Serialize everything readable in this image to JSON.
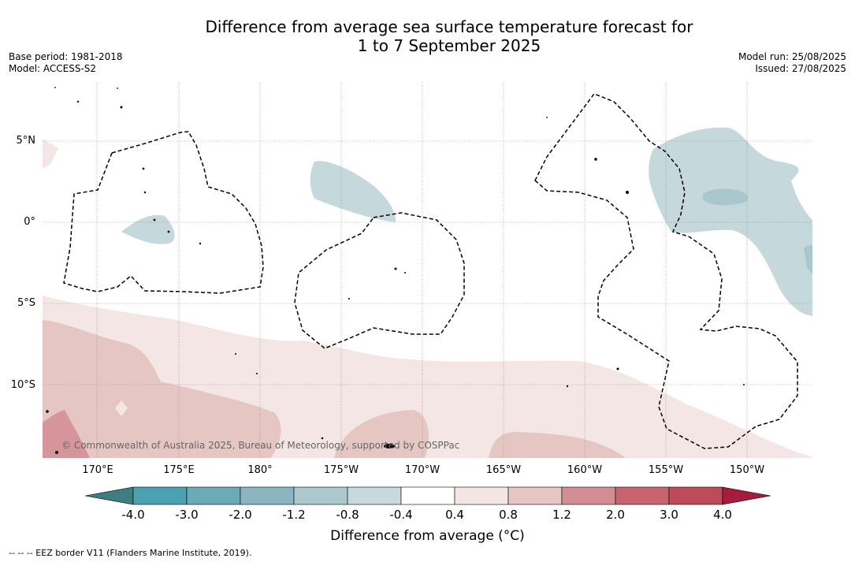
{
  "title": {
    "line1": "Difference from average sea surface temperature forecast for",
    "line2": "1 to 7 September 2025"
  },
  "meta": {
    "base_period": "Base period: 1981-2018",
    "model": "Model: ACCESS-S2",
    "model_run": "Model run: 25/08/2025",
    "issued": "Issued: 27/08/2025"
  },
  "map": {
    "lat_labels": [
      "5°N",
      "0°",
      "5°S",
      "10°S"
    ],
    "lon_labels": [
      "170°E",
      "175°E",
      "180°",
      "175°W",
      "170°W",
      "165°W",
      "160°W",
      "155°W",
      "150°W"
    ],
    "copyright": "© Commonwealth of Australia 2025, Bureau of Meteorology, supported by COSPPac",
    "colors": {
      "anom_plus_0_4_to_0_8": "#f3e6e5",
      "anom_plus_0_8_to_1_2": "#e6c6c2",
      "anom_plus_1_2_to_2_0": "#d5959a",
      "anom_minus_0_8_to_minus_0_4": "#c5d8dc",
      "anom_minus_1_2_to_minus_0_8": "#a9c8cd",
      "eez_border": "#000000",
      "gridlines": "#888888"
    }
  },
  "colorbar": {
    "ticks": [
      "-4.0",
      "-3.0",
      "-2.0",
      "-1.2",
      "-0.8",
      "-0.4",
      "0.4",
      "0.8",
      "1.2",
      "2.0",
      "3.0",
      "4.0"
    ],
    "colors": [
      "#3f7d85",
      "#4aa1b2",
      "#6aaab9",
      "#8bb6c1",
      "#abc8cd",
      "#c6d9dd",
      "#ffffff",
      "#f3e6e5",
      "#e6c6c2",
      "#d38e94",
      "#c9646f",
      "#bf4a59",
      "#a61c3c"
    ],
    "label": "Difference from average (°C)"
  },
  "footer": "--  --  -- EEZ border V11 (Flanders Marine Institute, 2019)."
}
